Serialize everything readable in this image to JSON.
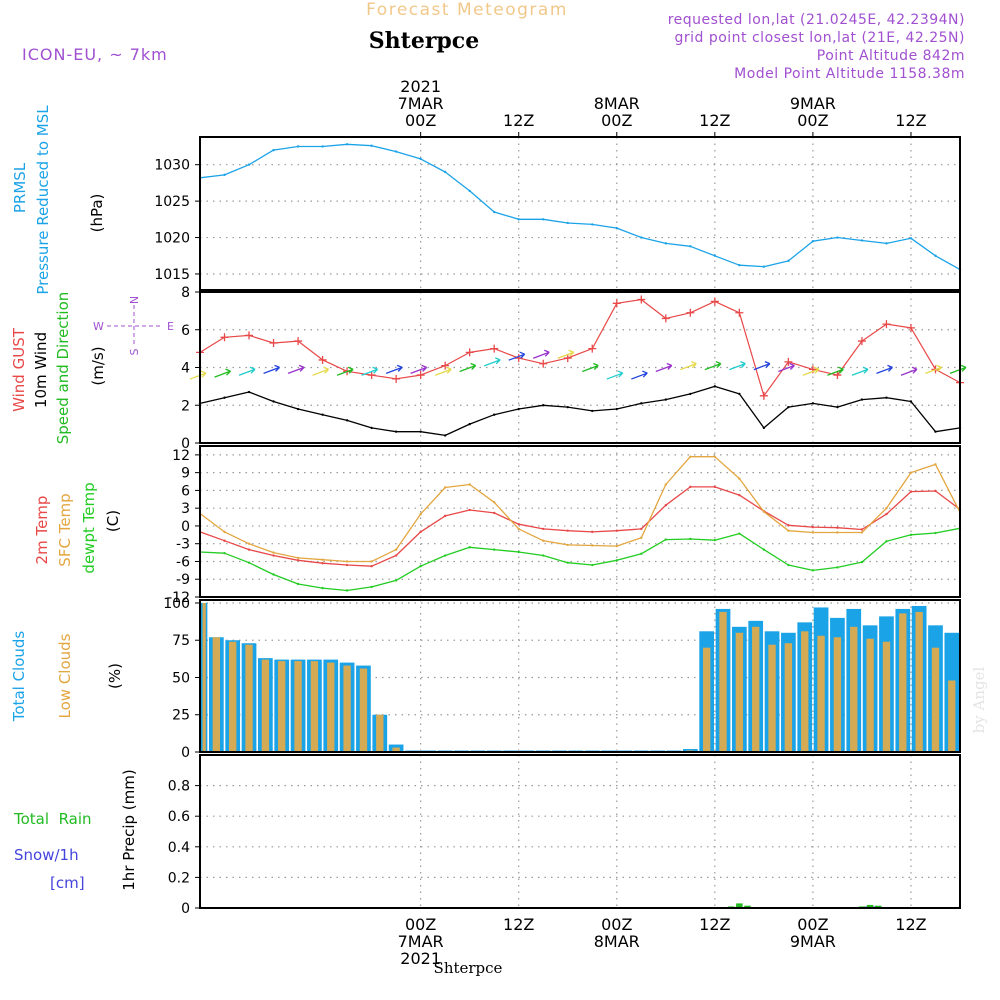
{
  "header": {
    "product": "Forecast Meteogram",
    "location": "Shterpce",
    "model": "ICON-EU, ~ 7km",
    "requested": "requested lon,lat (21.0245E, 42.2394N)",
    "gridpoint": "grid point closest lon,lat (21E, 42.25N)",
    "point_altitude": "Point Altitude 842m",
    "model_altitude": "Model Point Altitude 1158.38m",
    "watermark": "by Angel",
    "footer_location": "Shterpce"
  },
  "colors": {
    "pressure": "#1ba3e8",
    "gust": "#e84848",
    "wind": "#000000",
    "dir": "#22bb22",
    "t2m": "#e84848",
    "sfc": "#e3a640",
    "dew": "#22cc22",
    "total_clouds": "#1ba3e8",
    "low_clouds": "#d4aa55",
    "rain": "#22bb22",
    "snow": "#4444dd",
    "compass": "#a050d0",
    "header_orange": "#f2c88a"
  },
  "time_axis": {
    "hours_start": -27,
    "hours_end": 66,
    "top_ticks": [
      {
        "hour": 0,
        "lines": [
          "2021",
          "7MAR",
          "00Z"
        ]
      },
      {
        "hour": 12,
        "lines": [
          "12Z"
        ]
      },
      {
        "hour": 24,
        "lines": [
          "8MAR",
          "00Z"
        ]
      },
      {
        "hour": 36,
        "lines": [
          "12Z"
        ]
      },
      {
        "hour": 48,
        "lines": [
          "9MAR",
          "00Z"
        ]
      },
      {
        "hour": 60,
        "lines": [
          "12Z"
        ]
      }
    ],
    "bottom_ticks": [
      {
        "hour": 0,
        "lines": [
          "00Z",
          "7MAR",
          "2021"
        ]
      },
      {
        "hour": 12,
        "lines": [
          "12Z"
        ]
      },
      {
        "hour": 24,
        "lines": [
          "00Z",
          "8MAR"
        ]
      },
      {
        "hour": 36,
        "lines": [
          "12Z"
        ]
      },
      {
        "hour": 48,
        "lines": [
          "00Z",
          "9MAR"
        ]
      },
      {
        "hour": 60,
        "lines": [
          "12Z"
        ]
      }
    ]
  },
  "panels": {
    "pressure": {
      "labels": [
        "PRMSL",
        "Pressure Reduced to MSL"
      ],
      "unit": "(hPa)",
      "yticks": [
        1015,
        1020,
        1025,
        1030
      ],
      "ylim": [
        1012.8,
        1033.8
      ]
    },
    "wind": {
      "labels": [
        "Wind GUST",
        "10m Wind",
        "Speed and Direction"
      ],
      "unit": "(m/s)",
      "yticks": [
        0,
        2,
        4,
        6,
        8
      ],
      "ylim": [
        0,
        8
      ],
      "compass": [
        "N",
        "W",
        "E",
        "S"
      ]
    },
    "temp": {
      "labels": [
        "2m Temp",
        "SFC Temp",
        "dewpt Temp"
      ],
      "unit": "(C)",
      "yticks": [
        -12,
        -9,
        -6,
        -3,
        0,
        3,
        6,
        9,
        12
      ],
      "ylim": [
        -12,
        13.5
      ]
    },
    "clouds": {
      "labels": [
        "Total Clouds",
        "Low Clouds"
      ],
      "unit": "(%)",
      "yticks": [
        0,
        25,
        50,
        75,
        100
      ],
      "ylim": [
        0,
        102
      ]
    },
    "precip": {
      "labels": [
        "Total  Rain",
        "Snow/1h",
        "[cm]"
      ],
      "unit": "1hr Precip (mm)",
      "yticks": [
        "0",
        "0.2",
        "0.4",
        "0.6",
        "0.8"
      ],
      "ylim": [
        0,
        1.0
      ]
    }
  },
  "chart_data": [
    {
      "type": "line",
      "title": "PRMSL Pressure Reduced to MSL",
      "ylabel": "hPa",
      "ylim": [
        1012.8,
        1033.8
      ],
      "x": [
        -27,
        -24,
        -21,
        -18,
        -15,
        -12,
        -9,
        -6,
        -3,
        0,
        3,
        6,
        9,
        12,
        15,
        18,
        21,
        24,
        27,
        30,
        33,
        36,
        39,
        42,
        45,
        48,
        51,
        54,
        57,
        60,
        63,
        66
      ],
      "series": [
        {
          "name": "PRMSL",
          "values": [
            1028.2,
            1028.6,
            1030,
            1032,
            1032.5,
            1032.5,
            1032.8,
            1032.6,
            1031.8,
            1030.8,
            1029,
            1026.4,
            1023.5,
            1022.5,
            1022.5,
            1022,
            1021.8,
            1021.3,
            1020,
            1019.2,
            1018.8,
            1017.5,
            1016.2,
            1016,
            1016.8,
            1019.5,
            1020,
            1019.6,
            1019.2,
            1019.9,
            1017.5,
            1015.6
          ]
        }
      ]
    },
    {
      "type": "line",
      "title": "Wind GUST, 10m Wind Speed",
      "ylabel": "m/s",
      "ylim": [
        0,
        8
      ],
      "x": [
        -27,
        -24,
        -21,
        -18,
        -15,
        -12,
        -9,
        -6,
        -3,
        0,
        3,
        6,
        9,
        12,
        15,
        18,
        21,
        24,
        27,
        30,
        33,
        36,
        39,
        42,
        45,
        48,
        51,
        54,
        57,
        60,
        63,
        66
      ],
      "series": [
        {
          "name": "Wind GUST",
          "values": [
            4.8,
            5.6,
            5.7,
            5.3,
            5.4,
            4.4,
            3.8,
            3.6,
            3.4,
            3.6,
            4.1,
            4.8,
            5.0,
            4.5,
            4.2,
            4.5,
            5.0,
            7.4,
            7.6,
            6.6,
            6.9,
            7.5,
            6.9,
            2.5,
            4.3,
            3.9,
            3.6,
            5.4,
            6.3,
            6.1,
            3.9,
            3.2
          ]
        },
        {
          "name": "10m Wind",
          "values": [
            2.1,
            2.4,
            2.7,
            2.2,
            1.8,
            1.5,
            1.2,
            0.8,
            0.6,
            0.6,
            0.4,
            1.0,
            1.5,
            1.8,
            2.0,
            1.9,
            1.7,
            1.8,
            2.1,
            2.3,
            2.6,
            3.0,
            2.6,
            0.8,
            1.9,
            2.1,
            1.9,
            2.3,
            2.4,
            2.2,
            0.6,
            0.8
          ]
        },
        {
          "name": "Direction barbs (speed)",
          "values": [
            3.6,
            3.7,
            3.8,
            3.9,
            3.9,
            3.8,
            3.8,
            3.8,
            3.9,
            3.9,
            3.8,
            4.0,
            4.3,
            4.6,
            4.7,
            4.7,
            4.0,
            3.6,
            3.6,
            4.0,
            4.1,
            4.1,
            4.1,
            4.1,
            4.0,
            3.8,
            3.8,
            3.8,
            3.9,
            3.8,
            3.9,
            3.9
          ]
        }
      ]
    },
    {
      "type": "line",
      "title": "2m Temp, SFC Temp, dewpt Temp",
      "ylabel": "C",
      "ylim": [
        -12,
        13.5
      ],
      "x": [
        -27,
        -24,
        -21,
        -18,
        -15,
        -12,
        -9,
        -6,
        -3,
        0,
        3,
        6,
        9,
        12,
        15,
        18,
        21,
        24,
        27,
        30,
        33,
        36,
        39,
        42,
        45,
        48,
        51,
        54,
        57,
        60,
        63,
        66
      ],
      "series": [
        {
          "name": "2m Temp",
          "values": [
            -1,
            -2.5,
            -4,
            -5,
            -5.8,
            -6.3,
            -6.6,
            -6.8,
            -5,
            -1,
            1.7,
            2.7,
            2.2,
            0.3,
            -0.5,
            -0.8,
            -1,
            -0.8,
            -0.5,
            3.5,
            6.6,
            6.6,
            5.2,
            2.5,
            0.1,
            -0.2,
            -0.3,
            -0.6,
            2,
            5.8,
            5.9,
            2.8
          ]
        },
        {
          "name": "SFC Temp",
          "values": [
            2.1,
            -1,
            -3,
            -4.5,
            -5.4,
            -5.7,
            -6,
            -6,
            -4,
            2,
            6.5,
            7,
            4,
            -0.5,
            -2.5,
            -3.2,
            -3.3,
            -3.4,
            -2,
            7,
            11.7,
            11.7,
            8,
            2.4,
            -0.8,
            -1.1,
            -1.1,
            -1.1,
            3,
            9,
            10.4,
            2.3
          ]
        },
        {
          "name": "dewpt Temp",
          "values": [
            -4.4,
            -4.6,
            -6.2,
            -8.2,
            -9.8,
            -10.5,
            -10.9,
            -10.3,
            -9.2,
            -6.8,
            -5,
            -3.6,
            -4,
            -4.4,
            -5,
            -6.2,
            -6.6,
            -5.8,
            -4.7,
            -2.3,
            -2.2,
            -2.4,
            -1.3,
            -4,
            -6.6,
            -7.5,
            -7,
            -6.1,
            -2.6,
            -1.5,
            -1.2,
            -0.4
          ]
        }
      ]
    },
    {
      "type": "bar",
      "title": "Total Clouds, Low Clouds",
      "ylabel": "%",
      "ylim": [
        0,
        102
      ],
      "x": [
        -27,
        -25,
        -23,
        -21,
        -19,
        -17,
        -15,
        -13,
        -11,
        -9,
        -7,
        -5,
        -3,
        -1,
        1,
        3,
        5,
        7,
        9,
        11,
        13,
        15,
        17,
        19,
        21,
        23,
        25,
        27,
        29,
        31,
        33,
        35,
        37,
        39,
        41,
        43,
        45,
        47,
        49,
        51,
        53,
        55,
        57,
        59,
        61,
        63,
        65
      ],
      "series": [
        {
          "name": "Total Clouds",
          "values": [
            100,
            77,
            75,
            73,
            63,
            62,
            62,
            62,
            62,
            60,
            58,
            25,
            5,
            0,
            0,
            0,
            0,
            0,
            0,
            0,
            0,
            0,
            0,
            0,
            0,
            0,
            0,
            0,
            0,
            0,
            2,
            81,
            96,
            84,
            88,
            81,
            80,
            87,
            97,
            90,
            96,
            85,
            91,
            96,
            98,
            85,
            80
          ]
        },
        {
          "name": "Low Clouds",
          "values": [
            100,
            77,
            74,
            72,
            62,
            61,
            61,
            61,
            60,
            58,
            56,
            25,
            3,
            0,
            0,
            0,
            0,
            0,
            0,
            0,
            0,
            0,
            0,
            0,
            0,
            0,
            0,
            0,
            0,
            0,
            1,
            70,
            94,
            80,
            84,
            72,
            73,
            81,
            78,
            77,
            84,
            76,
            74,
            93,
            94,
            70,
            48
          ]
        }
      ]
    },
    {
      "type": "bar",
      "title": "1hr Precip (Total Rain, Snow/1h)",
      "ylabel": "mm",
      "ylim": [
        0,
        1.0
      ],
      "x": [
        -27,
        38,
        39,
        40,
        41,
        53,
        54,
        55,
        56,
        57
      ],
      "series": [
        {
          "name": "Total Rain",
          "values": [
            0.005,
            0.01,
            0.03,
            0.015,
            0.005,
            0.005,
            0.01,
            0.02,
            0.015,
            0.005
          ]
        },
        {
          "name": "Snow/1h",
          "values": [
            0.005,
            0,
            0,
            0,
            0,
            0.005,
            0.01,
            0.01,
            0.005,
            0
          ]
        }
      ]
    }
  ]
}
